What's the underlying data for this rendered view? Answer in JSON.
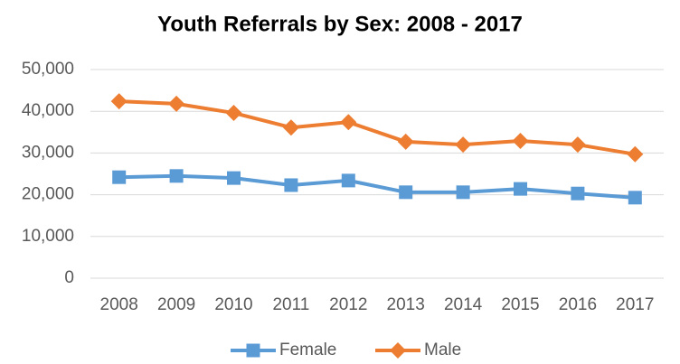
{
  "chart_data": {
    "type": "line",
    "title": "Youth Referrals by Sex: 2008 - 2017",
    "categories": [
      "2008",
      "2009",
      "2010",
      "2011",
      "2012",
      "2013",
      "2014",
      "2015",
      "2016",
      "2017"
    ],
    "series": [
      {
        "name": "Female",
        "color": "#5b9bd5",
        "marker": "square",
        "values": [
          24200,
          24500,
          24000,
          22300,
          23400,
          20600,
          20600,
          21400,
          20300,
          19300
        ]
      },
      {
        "name": "Male",
        "color": "#ed7d31",
        "marker": "diamond",
        "values": [
          42400,
          41800,
          39600,
          36100,
          37400,
          32700,
          32000,
          32900,
          32000,
          29700
        ]
      }
    ],
    "ylim": [
      0,
      50000
    ],
    "yticks": [
      0,
      {
        "value": 10000,
        "label": "10,000"
      },
      {
        "value": 20000,
        "label": "20,000"
      },
      {
        "value": 30000,
        "label": "30,000"
      },
      {
        "value": 40000,
        "label": "40,000"
      },
      {
        "value": 50000,
        "label": "50,000"
      }
    ],
    "grid": true,
    "legend": "bottom"
  }
}
